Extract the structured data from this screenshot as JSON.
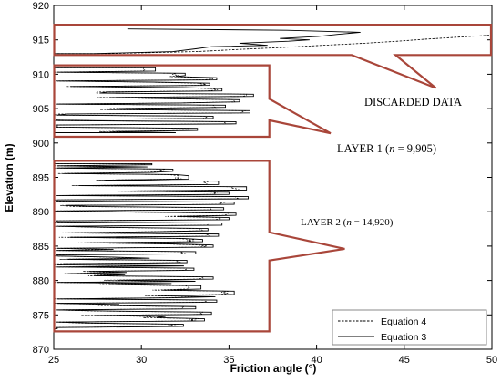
{
  "chart_data": {
    "type": "line",
    "xlabel": "Friction angle (°)",
    "ylabel": "Elevation (m)",
    "xlim": [
      25,
      50
    ],
    "ylim": [
      870,
      920
    ],
    "x_ticks": [
      "25",
      "30",
      "35",
      "40",
      "45",
      "50"
    ],
    "y_ticks": [
      "870",
      "875",
      "880",
      "885",
      "890",
      "895",
      "900",
      "905",
      "910",
      "915",
      "920"
    ],
    "grid": false,
    "legend_position": "bottom-right",
    "series": [
      {
        "name": "Equation 4",
        "style": "dashed",
        "color": "#000000"
      },
      {
        "name": "Equation 3",
        "style": "solid",
        "color": "#000000"
      }
    ],
    "profile_eq3": [
      [
        913.0,
        27.3
      ],
      [
        913.3,
        31.8
      ],
      [
        913.7,
        33.1
      ],
      [
        914.0,
        34.0
      ],
      [
        914.2,
        37.2
      ],
      [
        914.5,
        35.6
      ],
      [
        914.8,
        38.4
      ],
      [
        915.0,
        39.6
      ],
      [
        915.2,
        37.9
      ],
      [
        915.5,
        40.1
      ],
      [
        915.8,
        41.2
      ],
      [
        916.1,
        42.5
      ],
      [
        916.4,
        38.3
      ],
      [
        916.6,
        29.2
      ]
    ],
    "profile_eq4": [
      [
        913.0,
        28.0
      ],
      [
        913.3,
        33.2
      ],
      [
        913.6,
        35.5
      ],
      [
        913.9,
        38.1
      ],
      [
        914.2,
        40.3
      ],
      [
        914.5,
        42.7
      ],
      [
        914.8,
        44.6
      ],
      [
        915.1,
        46.2
      ],
      [
        915.4,
        48.1
      ],
      [
        915.7,
        50.0
      ]
    ],
    "layer1_band": [
      901.5,
      911.0
    ],
    "layer1_peaks": [
      [
        902.0,
        33.2
      ],
      [
        903.0,
        35.4
      ],
      [
        903.8,
        34.1
      ],
      [
        904.6,
        36.2
      ],
      [
        905.3,
        34.8
      ],
      [
        906.2,
        35.6
      ],
      [
        907.0,
        36.4
      ],
      [
        907.7,
        34.6
      ],
      [
        908.5,
        33.9
      ],
      [
        909.3,
        34.3
      ],
      [
        910.0,
        32.5
      ],
      [
        910.7,
        30.8
      ]
    ],
    "layer2_band": [
      873.0,
      897.0
    ],
    "layer2_peaks": [
      [
        873.5,
        32.4
      ],
      [
        874.3,
        33.6
      ],
      [
        875.2,
        34.0
      ],
      [
        876.1,
        33.1
      ],
      [
        877.0,
        34.3
      ],
      [
        878.2,
        35.3
      ],
      [
        879.0,
        33.4
      ],
      [
        880.3,
        34.1
      ],
      [
        881.6,
        33.0
      ],
      [
        882.8,
        32.6
      ],
      [
        884.0,
        33.1
      ],
      [
        885.0,
        34.1
      ],
      [
        885.8,
        33.5
      ],
      [
        886.6,
        34.4
      ],
      [
        887.4,
        33.8
      ],
      [
        888.2,
        34.6
      ],
      [
        889.0,
        35.0
      ],
      [
        889.7,
        35.4
      ],
      [
        890.4,
        34.7
      ],
      [
        891.2,
        35.3
      ],
      [
        892.0,
        36.1
      ],
      [
        892.7,
        35.0
      ],
      [
        893.4,
        36.0
      ],
      [
        894.2,
        34.4
      ],
      [
        895.0,
        32.7
      ],
      [
        896.0,
        31.8
      ],
      [
        897.0,
        30.6
      ]
    ],
    "annotations": {
      "discarded": "DISCARDED DATA",
      "layer1_prefix": "LAYER  1 (",
      "layer1_var": "n",
      "layer1_suffix": " = 9,905)",
      "layer2_prefix": "LAYER 2 (",
      "layer2_var": "n",
      "layer2_suffix": " = 14,920)"
    }
  }
}
